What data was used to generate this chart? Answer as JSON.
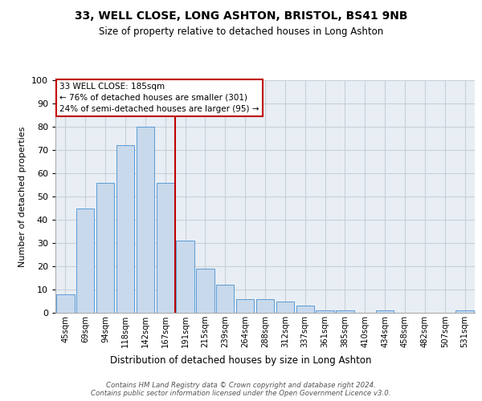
{
  "title": "33, WELL CLOSE, LONG ASHTON, BRISTOL, BS41 9NB",
  "subtitle": "Size of property relative to detached houses in Long Ashton",
  "xlabel": "Distribution of detached houses by size in Long Ashton",
  "ylabel": "Number of detached properties",
  "bar_labels": [
    "45sqm",
    "69sqm",
    "94sqm",
    "118sqm",
    "142sqm",
    "167sqm",
    "191sqm",
    "215sqm",
    "239sqm",
    "264sqm",
    "288sqm",
    "312sqm",
    "337sqm",
    "361sqm",
    "385sqm",
    "410sqm",
    "434sqm",
    "458sqm",
    "482sqm",
    "507sqm",
    "531sqm"
  ],
  "bar_values": [
    8,
    45,
    56,
    72,
    80,
    56,
    31,
    19,
    12,
    6,
    6,
    5,
    3,
    1,
    1,
    0,
    1,
    0,
    0,
    0,
    1
  ],
  "bar_color": "#c8d9ec",
  "bar_edge_color": "#5b9bd5",
  "grid_color": "#c8d0d8",
  "bg_color": "#e8eef4",
  "vline_x": 5.5,
  "vline_color": "#c00000",
  "annotation_text": "33 WELL CLOSE: 185sqm\n← 76% of detached houses are smaller (301)\n24% of semi-detached houses are larger (95) →",
  "annotation_box_color": "#ffffff",
  "annotation_box_edge_color": "#c00000",
  "ylim": [
    0,
    100
  ],
  "yticks": [
    0,
    10,
    20,
    30,
    40,
    50,
    60,
    70,
    80,
    90,
    100
  ],
  "footnote": "Contains HM Land Registry data © Crown copyright and database right 2024.\nContains public sector information licensed under the Open Government Licence v3.0."
}
